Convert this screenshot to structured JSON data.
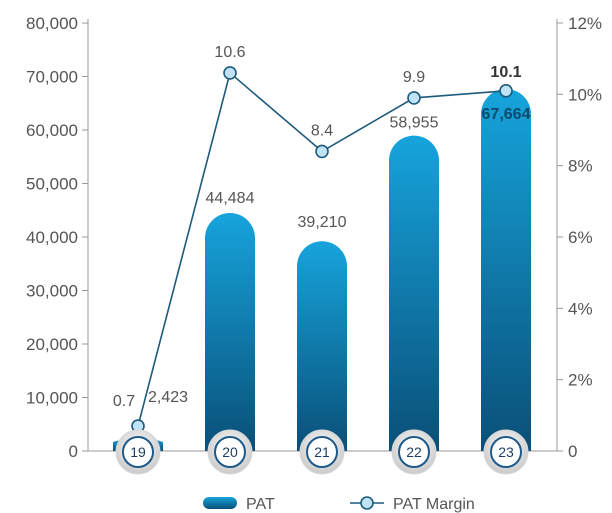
{
  "chart_data": {
    "type": "bar",
    "categories": [
      "19",
      "20",
      "21",
      "22",
      "23"
    ],
    "series": [
      {
        "name": "PAT",
        "type": "bar",
        "values": [
          2423,
          44484,
          39210,
          58955,
          67664
        ],
        "labels": [
          "2,423",
          "44,484",
          "39,210",
          "58,955",
          "67,664"
        ]
      },
      {
        "name": "PAT Margin",
        "type": "line",
        "axis": "right",
        "values": [
          0.7,
          10.6,
          8.4,
          9.9,
          10.1
        ],
        "labels": [
          "0.7",
          "10.6",
          "8.4",
          "9.9",
          "10.1"
        ]
      }
    ],
    "y_left": {
      "min": 0,
      "max": 80000,
      "ticks": [
        "0",
        "10,000",
        "20,000",
        "30,000",
        "40,000",
        "50,000",
        "60,000",
        "70,000",
        "80,000"
      ]
    },
    "y_right": {
      "min": 0,
      "max": 12,
      "ticks": [
        "0",
        "2%",
        "4%",
        "6%",
        "8%",
        "10%",
        "12%"
      ]
    },
    "legend": {
      "placement": "bottom",
      "items": [
        "PAT",
        "PAT Margin"
      ]
    },
    "grid": false,
    "colors": {
      "bar_top": "#16a4dc",
      "bar_bottom": "#0a4f78",
      "line": "#1d5a7c",
      "marker_fill": "#bfe3f5",
      "axis": "#9a9a9a",
      "text": "#555555"
    }
  }
}
